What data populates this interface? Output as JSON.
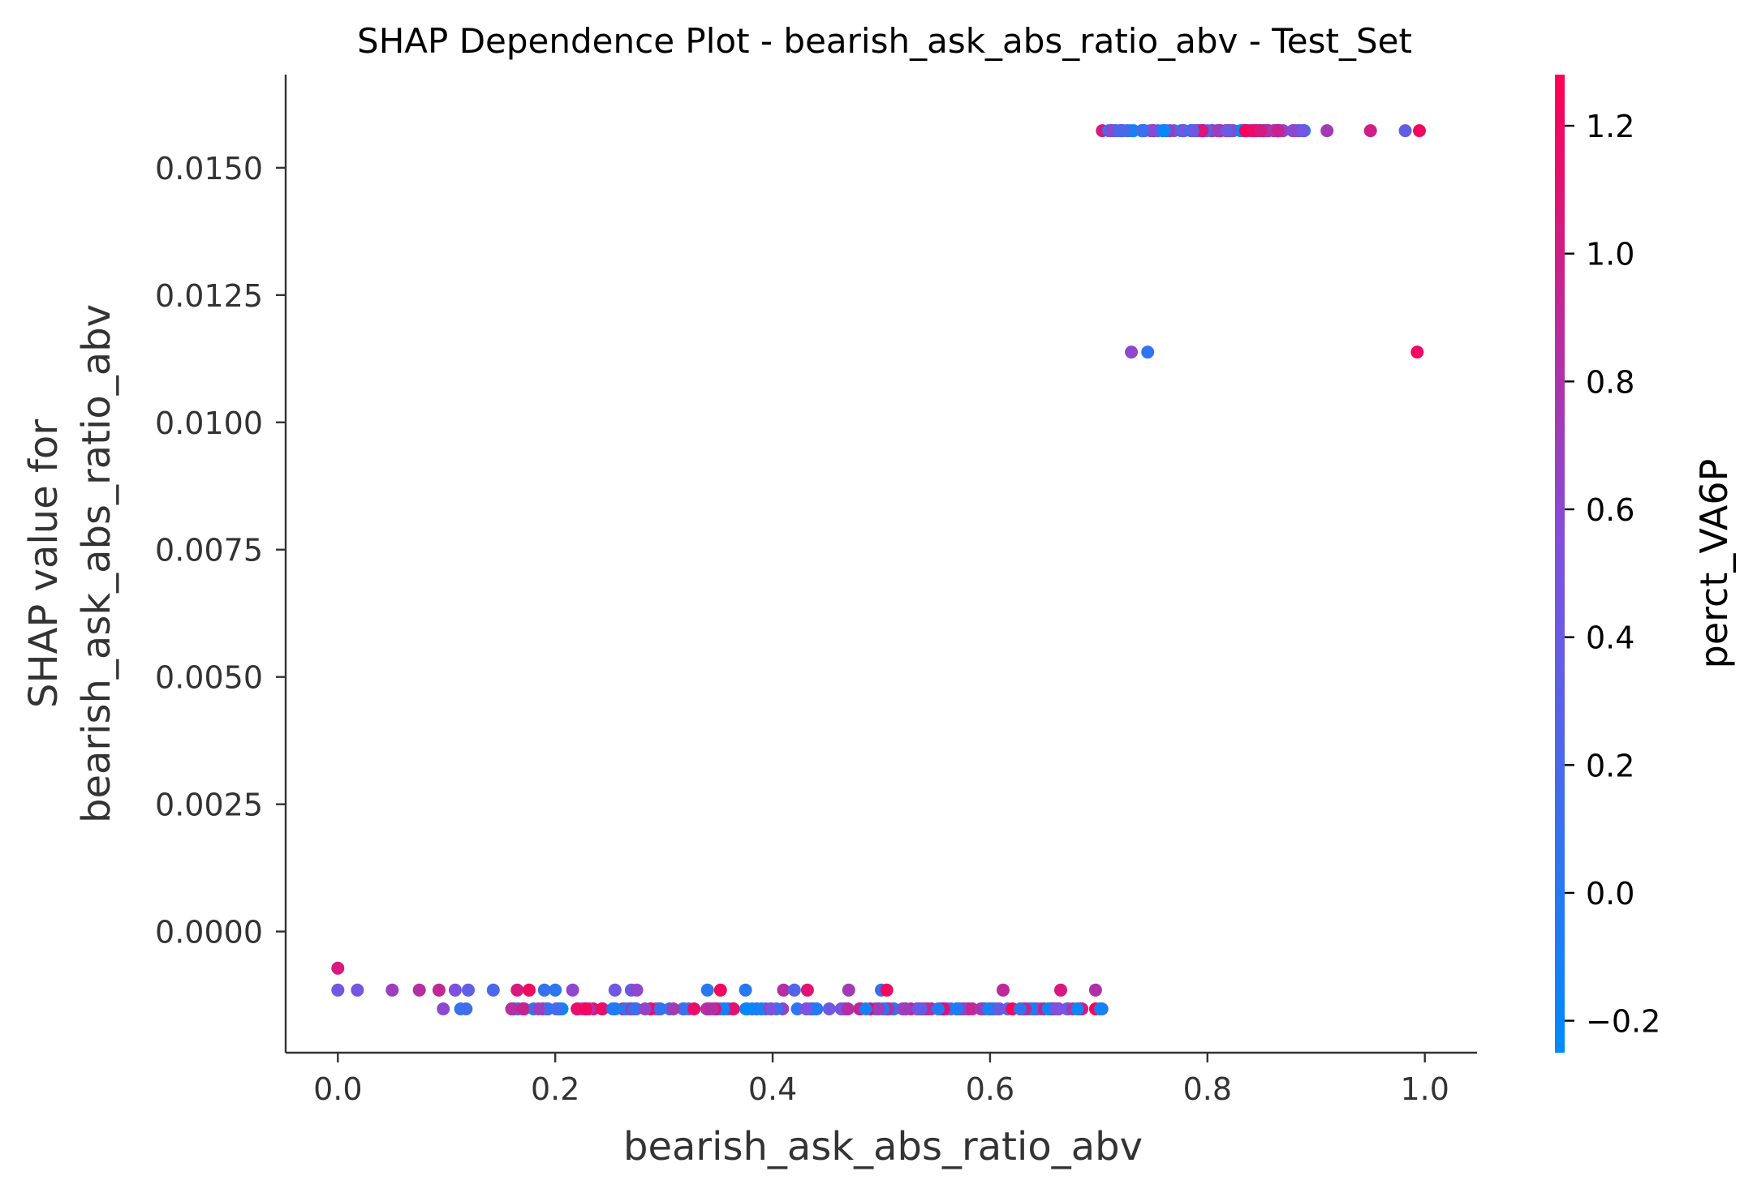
{
  "chart_data": {
    "type": "scatter",
    "title": "SHAP Dependence Plot - bearish_ask_abs_ratio_abv - Test_Set",
    "xlabel": "bearish_ask_abs_ratio_abv",
    "ylabel_line1": "SHAP value for",
    "ylabel_line2": "bearish_ask_abs_ratio_abv",
    "xlim": [
      -0.048,
      1.048
    ],
    "ylim": [
      -0.00238,
      0.01683
    ],
    "x_ticks": [
      0.0,
      0.2,
      0.4,
      0.6,
      0.8,
      1.0
    ],
    "x_tick_labels": [
      "0.0",
      "0.2",
      "0.4",
      "0.6",
      "0.8",
      "1.0"
    ],
    "y_ticks": [
      0.0,
      0.0025,
      0.005,
      0.0075,
      0.01,
      0.0125,
      0.015
    ],
    "y_tick_labels": [
      "0.0000",
      "0.0025",
      "0.0050",
      "0.0075",
      "0.0100",
      "0.0125",
      "0.0150"
    ],
    "colorbar": {
      "label": "perct_VA6P",
      "range": [
        -0.25,
        1.28
      ],
      "ticks": [
        -0.2,
        0.0,
        0.2,
        0.4,
        0.6,
        0.8,
        1.0,
        1.2
      ],
      "tick_labels": [
        "−0.2",
        "0.0",
        "0.2",
        "0.4",
        "0.6",
        "0.8",
        "1.0",
        "1.2"
      ],
      "colors": [
        "#008afb",
        "#7c52e0",
        "#ff0052"
      ]
    },
    "points": [
      [
        0.0,
        -0.00072,
        1.05
      ],
      [
        0.0,
        -0.00115,
        0.45
      ],
      [
        0.018,
        -0.00115,
        0.48
      ],
      [
        0.05,
        -0.00115,
        0.7
      ],
      [
        0.075,
        -0.00115,
        0.85
      ],
      [
        0.093,
        -0.00115,
        0.92
      ],
      [
        0.108,
        -0.00115,
        0.52
      ],
      [
        0.12,
        -0.00115,
        0.35
      ],
      [
        0.143,
        -0.00115,
        0.22
      ],
      [
        0.165,
        -0.00115,
        1.05
      ],
      [
        0.176,
        -0.00115,
        1.2
      ],
      [
        0.19,
        -0.00115,
        0.08
      ],
      [
        0.2,
        -0.00115,
        0.02
      ],
      [
        0.216,
        -0.00115,
        0.62
      ],
      [
        0.255,
        -0.00115,
        0.45
      ],
      [
        0.27,
        -0.00115,
        0.4
      ],
      [
        0.275,
        -0.00115,
        0.62
      ],
      [
        0.34,
        -0.00115,
        0.0
      ],
      [
        0.352,
        -0.00115,
        1.2
      ],
      [
        0.375,
        -0.00115,
        0.0
      ],
      [
        0.41,
        -0.00115,
        0.85
      ],
      [
        0.42,
        -0.00115,
        0.25
      ],
      [
        0.432,
        -0.00115,
        1.1
      ],
      [
        0.47,
        -0.00115,
        0.75
      ],
      [
        0.5,
        -0.00115,
        0.08
      ],
      [
        0.505,
        -0.00115,
        1.2
      ],
      [
        0.612,
        -0.00115,
        0.9
      ],
      [
        0.665,
        -0.00115,
        1.05
      ],
      [
        0.697,
        -0.00115,
        0.82
      ],
      [
        0.097,
        -0.00152,
        0.6
      ],
      [
        0.113,
        -0.00152,
        0.05
      ],
      [
        0.118,
        -0.00152,
        0.15
      ],
      [
        0.16,
        -0.00152,
        0.85
      ],
      [
        0.17,
        -0.00152,
        0.95
      ],
      [
        0.73,
        0.01138,
        0.62
      ],
      [
        0.745,
        0.01138,
        0.05
      ],
      [
        0.993,
        0.01138,
        1.2
      ],
      [
        0.91,
        0.01573,
        0.75
      ],
      [
        0.95,
        0.01573,
        1.0
      ],
      [
        0.982,
        0.01573,
        0.35
      ],
      [
        0.995,
        0.01573,
        1.2
      ],
      [
        0.865,
        0.01573,
        0.95
      ],
      [
        0.88,
        0.01573,
        0.6
      ],
      [
        0.888,
        0.01573,
        0.45
      ]
    ],
    "dense_bands": [
      {
        "x_start": 0.16,
        "x_end": 0.705,
        "y": -0.00152,
        "n": 190
      },
      {
        "x_start": 0.703,
        "x_end": 0.89,
        "y": 0.01573,
        "n": 110
      }
    ]
  }
}
